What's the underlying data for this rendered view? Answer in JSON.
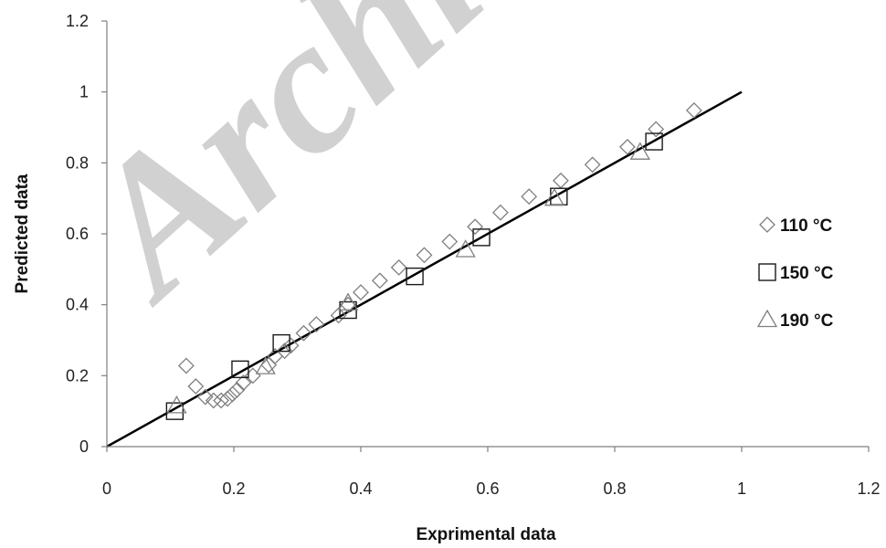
{
  "chart_data": {
    "type": "scatter",
    "title": "",
    "xlabel": "Exprimental data",
    "ylabel": "Predicted data",
    "xlim": [
      0,
      1.2
    ],
    "ylim": [
      0,
      1.2
    ],
    "x_ticks": [
      "0",
      "0.2",
      "0.4",
      "0.6",
      "0.8",
      "1",
      "1.2"
    ],
    "y_ticks": [
      "0",
      "0.2",
      "0.4",
      "0.6",
      "0.8",
      "1",
      "1.2"
    ],
    "x_tick_values": [
      0,
      0.2,
      0.4,
      0.6,
      0.8,
      1,
      1.2
    ],
    "y_tick_values": [
      0,
      0.2,
      0.4,
      0.6,
      0.8,
      1,
      1.2
    ],
    "grid": false,
    "legend_position": "right",
    "reference_line": {
      "x": [
        0,
        1
      ],
      "y": [
        0,
        1
      ],
      "color": "#000000"
    },
    "series": [
      {
        "name": "110 °C",
        "marker": "diamond",
        "color": "#7f7f7f",
        "points": [
          [
            0.125,
            0.228
          ],
          [
            0.14,
            0.17
          ],
          [
            0.155,
            0.14
          ],
          [
            0.168,
            0.13
          ],
          [
            0.18,
            0.13
          ],
          [
            0.19,
            0.135
          ],
          [
            0.198,
            0.148
          ],
          [
            0.205,
            0.16
          ],
          [
            0.215,
            0.18
          ],
          [
            0.23,
            0.2
          ],
          [
            0.255,
            0.23
          ],
          [
            0.265,
            0.255
          ],
          [
            0.28,
            0.27
          ],
          [
            0.29,
            0.285
          ],
          [
            0.31,
            0.32
          ],
          [
            0.33,
            0.345
          ],
          [
            0.365,
            0.37
          ],
          [
            0.38,
            0.4
          ],
          [
            0.4,
            0.435
          ],
          [
            0.43,
            0.468
          ],
          [
            0.46,
            0.505
          ],
          [
            0.5,
            0.54
          ],
          [
            0.54,
            0.578
          ],
          [
            0.58,
            0.62
          ],
          [
            0.62,
            0.66
          ],
          [
            0.665,
            0.705
          ],
          [
            0.715,
            0.75
          ],
          [
            0.765,
            0.795
          ],
          [
            0.82,
            0.845
          ],
          [
            0.865,
            0.895
          ],
          [
            0.925,
            0.948
          ]
        ]
      },
      {
        "name": "150 °C",
        "marker": "square",
        "color": "#1a1a1a",
        "points": [
          [
            0.107,
            0.1
          ],
          [
            0.21,
            0.218
          ],
          [
            0.275,
            0.292
          ],
          [
            0.38,
            0.385
          ],
          [
            0.485,
            0.48
          ],
          [
            0.59,
            0.59
          ],
          [
            0.712,
            0.705
          ],
          [
            0.862,
            0.86
          ]
        ]
      },
      {
        "name": "190 °C",
        "marker": "triangle",
        "color": "#7f7f7f",
        "points": [
          [
            0.11,
            0.115
          ],
          [
            0.25,
            0.225
          ],
          [
            0.38,
            0.405
          ],
          [
            0.565,
            0.555
          ],
          [
            0.705,
            0.7
          ],
          [
            0.84,
            0.83
          ]
        ]
      }
    ]
  },
  "watermark": {
    "text": "Archi"
  }
}
